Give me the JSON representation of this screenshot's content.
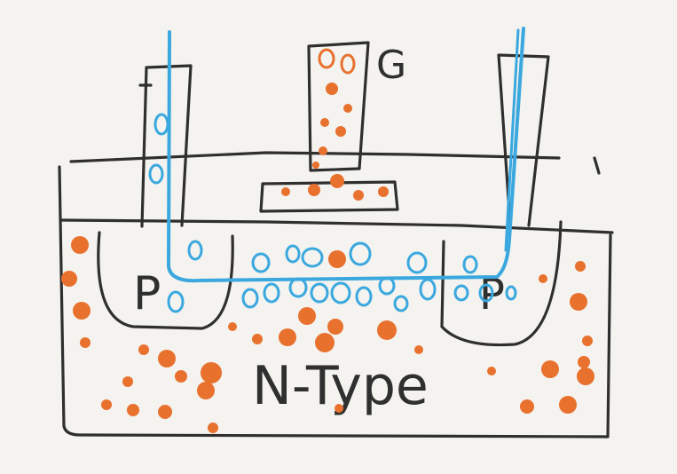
{
  "labels": {
    "gate": "G",
    "source_region": "P",
    "drain_region": "P",
    "substrate": "N-Type"
  },
  "colors": {
    "background": "#f4f3ef",
    "ink": "#2f2f2f",
    "holes": "#3aa8df",
    "electrons": "#e8712e"
  }
}
